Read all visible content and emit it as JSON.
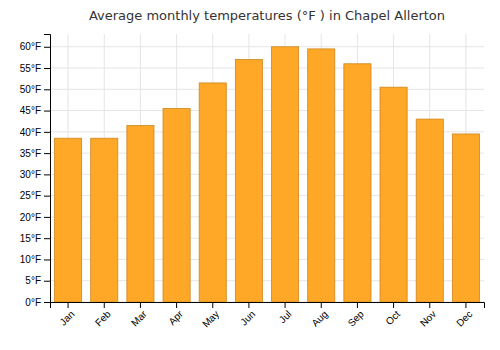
{
  "chart_data": {
    "type": "bar",
    "title": "Average monthly temperatures (°F ) in Chapel Allerton",
    "categories": [
      "Jan",
      "Feb",
      "Mar",
      "Apr",
      "May",
      "Jun",
      "Jul",
      "Aug",
      "Sep",
      "Oct",
      "Nov",
      "Dec"
    ],
    "values": [
      38.5,
      38.5,
      41.5,
      45.5,
      51.5,
      57.0,
      60.0,
      59.5,
      56.0,
      50.5,
      43.0,
      39.5
    ],
    "color": "#FFA726",
    "ylim": [
      0,
      63
    ],
    "yticks": [
      {
        "value": 0,
        "label": "0°F"
      },
      {
        "value": 5,
        "label": "5°F"
      },
      {
        "value": 10,
        "label": "10°F"
      },
      {
        "value": 15,
        "label": "15°F"
      },
      {
        "value": 20,
        "label": "20°F"
      },
      {
        "value": 25,
        "label": "25°F"
      },
      {
        "value": 30,
        "label": "30°F"
      },
      {
        "value": 35,
        "label": "35°F"
      },
      {
        "value": 40,
        "label": "40°F"
      },
      {
        "value": 45,
        "label": "45°F"
      },
      {
        "value": 50,
        "label": "50°F"
      },
      {
        "value": 55,
        "label": "55°F"
      },
      {
        "value": 60,
        "label": "60°F"
      }
    ],
    "grid": true
  }
}
